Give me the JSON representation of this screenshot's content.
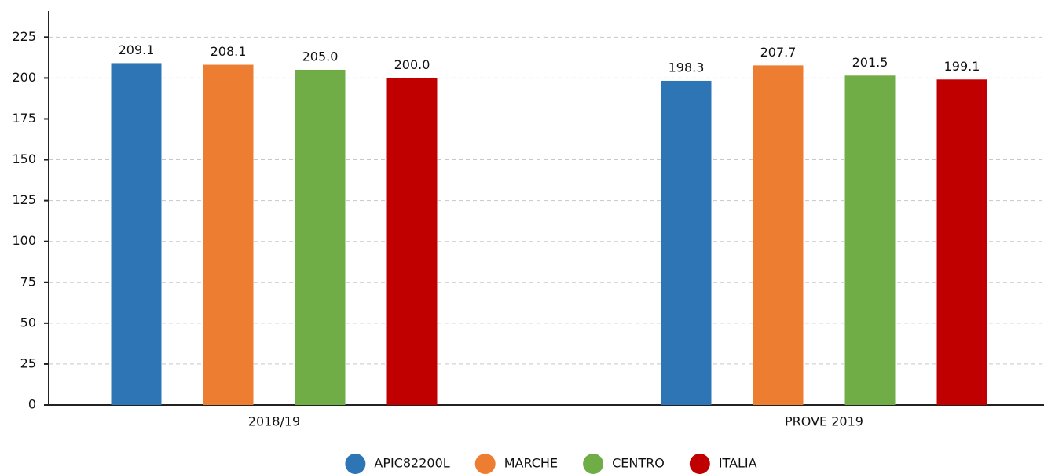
{
  "chart_data": {
    "type": "bar",
    "categories": [
      "2018/19",
      "PROVE 2019"
    ],
    "series": [
      {
        "name": "APIC82200L",
        "color": "#2e75b6",
        "values": [
          209.1,
          198.3
        ],
        "value_labels": [
          "209.1",
          "198.3"
        ]
      },
      {
        "name": "MARCHE",
        "color": "#ed7d31",
        "values": [
          208.1,
          207.7
        ],
        "value_labels": [
          "208.1",
          "207.7"
        ]
      },
      {
        "name": "CENTRO",
        "color": "#70ad47",
        "values": [
          205.0,
          201.5
        ],
        "value_labels": [
          "205.0",
          "201.5"
        ]
      },
      {
        "name": "ITALIA",
        "color": "#c00000",
        "values": [
          200.0,
          199.1
        ],
        "value_labels": [
          "200.0",
          "199.1"
        ]
      }
    ],
    "ylim": [
      0,
      241
    ],
    "yticks": [
      0,
      25,
      50,
      75,
      100,
      125,
      150,
      175,
      200,
      225
    ],
    "grid": true,
    "legend": "bottom"
  }
}
